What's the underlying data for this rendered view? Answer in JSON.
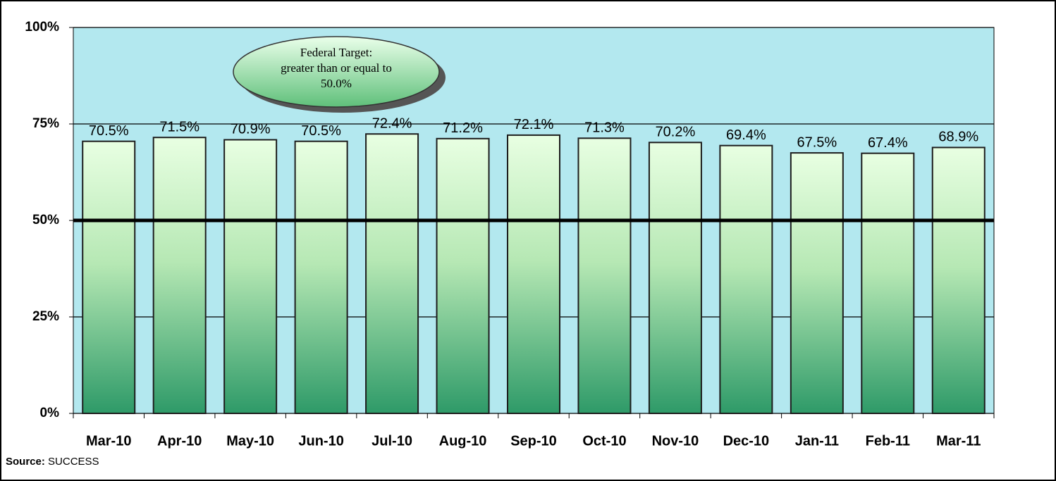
{
  "chart_data": {
    "type": "bar",
    "categories": [
      "Mar-10",
      "Apr-10",
      "May-10",
      "Jun-10",
      "Jul-10",
      "Aug-10",
      "Sep-10",
      "Oct-10",
      "Nov-10",
      "Dec-10",
      "Jan-11",
      "Feb-11",
      "Mar-11"
    ],
    "values": [
      70.5,
      71.5,
      70.9,
      70.5,
      72.4,
      71.2,
      72.1,
      71.3,
      70.2,
      69.4,
      67.5,
      67.4,
      68.9
    ],
    "value_labels": [
      "70.5%",
      "71.5%",
      "70.9%",
      "70.5%",
      "72.4%",
      "71.2%",
      "72.1%",
      "71.3%",
      "70.2%",
      "69.4%",
      "67.5%",
      "67.4%",
      "68.9%"
    ],
    "color": "#2e9a68",
    "ylim": [
      0,
      100
    ],
    "yticks": [
      {
        "value": 0,
        "label": "0%"
      },
      {
        "value": 25,
        "label": "25%"
      },
      {
        "value": 50,
        "label": "50%"
      },
      {
        "value": 75,
        "label": "75%"
      },
      {
        "value": 100,
        "label": "100%"
      }
    ],
    "grid": true,
    "target_line": 50,
    "annotation": [
      "Federal Target:",
      "greater than or equal to",
      "50.0%"
    ],
    "source_label": "Source:",
    "source": "SUCCESS"
  }
}
